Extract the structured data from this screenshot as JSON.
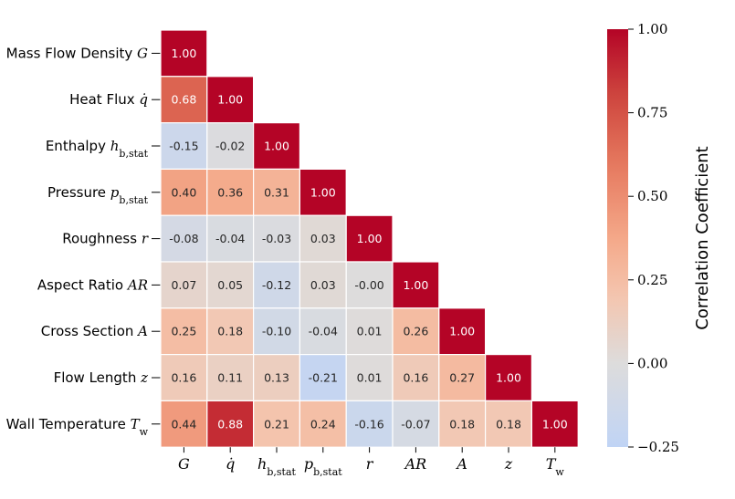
{
  "chart_data": {
    "type": "heatmap",
    "title": "",
    "row_labels": [
      "Mass Flow Density G",
      "Heat Flux q̇",
      "Enthalpy h_b,stat",
      "Pressure p_b,stat",
      "Roughness r",
      "Aspect Ratio AR",
      "Cross Section A",
      "Flow Length z",
      "Wall Temperature T_w"
    ],
    "column_labels": [
      "G",
      "q̇",
      "h_b,stat",
      "p_b,stat",
      "r",
      "AR",
      "A",
      "z",
      "T_w"
    ],
    "values": [
      [
        1.0
      ],
      [
        0.68,
        1.0
      ],
      [
        -0.15,
        -0.02,
        1.0
      ],
      [
        0.4,
        0.36,
        0.31,
        1.0
      ],
      [
        -0.08,
        -0.04,
        -0.03,
        0.03,
        1.0
      ],
      [
        0.07,
        0.05,
        -0.12,
        0.03,
        -0.0,
        1.0
      ],
      [
        0.25,
        0.18,
        -0.1,
        -0.04,
        0.01,
        0.26,
        1.0
      ],
      [
        0.16,
        0.11,
        0.13,
        -0.21,
        0.01,
        0.16,
        0.27,
        1.0
      ],
      [
        0.44,
        0.88,
        0.21,
        0.24,
        -0.16,
        -0.07,
        0.18,
        0.18,
        1.0
      ]
    ],
    "value_labels": [
      [
        "1.00"
      ],
      [
        "0.68",
        "1.00"
      ],
      [
        "-0.15",
        "-0.02",
        "1.00"
      ],
      [
        "0.40",
        "0.36",
        "0.31",
        "1.00"
      ],
      [
        "-0.08",
        "-0.04",
        "-0.03",
        "0.03",
        "1.00"
      ],
      [
        "0.07",
        "0.05",
        "-0.12",
        "0.03",
        "-0.00",
        "1.00"
      ],
      [
        "0.25",
        "0.18",
        "-0.10",
        "-0.04",
        "0.01",
        "0.26",
        "1.00"
      ],
      [
        "0.16",
        "0.11",
        "0.13",
        "-0.21",
        "0.01",
        "0.16",
        "0.27",
        "1.00"
      ],
      [
        "0.44",
        "0.88",
        "0.21",
        "0.24",
        "-0.16",
        "-0.07",
        "0.18",
        "0.18",
        "1.00"
      ]
    ],
    "mask": "upper-triangle",
    "colormap": "coolwarm",
    "vmin": -0.25,
    "vmax": 1.0,
    "colorbar": {
      "label": "Correlation Coefficient",
      "ticks": [
        1.0,
        0.75,
        0.5,
        0.25,
        0.0,
        -0.25
      ],
      "tick_labels": [
        "1.00",
        "0.75",
        "0.50",
        "0.25",
        "0.00",
        "−0.25"
      ],
      "placement": "right"
    }
  }
}
